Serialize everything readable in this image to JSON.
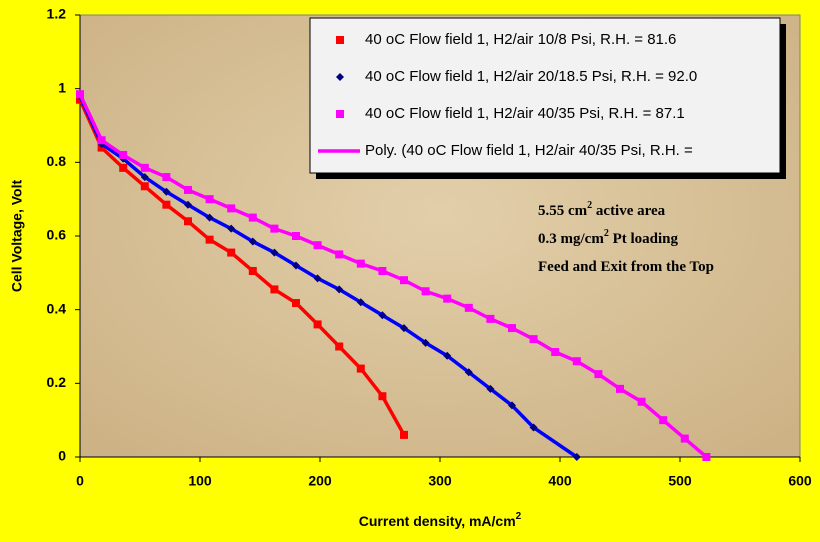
{
  "chart_data": {
    "type": "scatter",
    "x_label": [
      "Current density, mA/cm",
      "2"
    ],
    "y_label": "Cell Voltage, Volt",
    "xlim": [
      0,
      600
    ],
    "xticks": [
      0,
      100,
      200,
      300,
      400,
      500,
      600
    ],
    "ylim": [
      0,
      1.2
    ],
    "yticks": [
      0,
      0.2,
      0.4,
      0.6,
      0.8,
      1,
      1.2
    ],
    "grid": false,
    "legend": "top-right",
    "series": [
      {
        "name": "40 oC Flow field 1, H2/air 10/8 Psi, R.H. = 81.6",
        "color": "#ff0000",
        "marker": "square",
        "trendline_color": "#ff0000",
        "x": [
          0,
          18,
          36,
          54,
          72,
          90,
          108,
          126,
          144,
          162,
          180,
          198,
          216,
          234,
          252,
          270
        ],
        "values": [
          0.97,
          0.84,
          0.785,
          0.735,
          0.685,
          0.64,
          0.59,
          0.555,
          0.505,
          0.455,
          0.418,
          0.36,
          0.3,
          0.24,
          0.165,
          0.06
        ]
      },
      {
        "name": "40 oC Flow field 1, H2/air 20/18.5 Psi, R.H. = 92.0",
        "color": "#000080",
        "marker": "diamond",
        "trendline_color": "#0000ff",
        "x": [
          0,
          18,
          36,
          54,
          72,
          90,
          108,
          126,
          144,
          162,
          180,
          198,
          216,
          234,
          252,
          270,
          288,
          306,
          324,
          342,
          360,
          378,
          414
        ],
        "values": [
          0.98,
          0.85,
          0.81,
          0.76,
          0.72,
          0.685,
          0.65,
          0.62,
          0.585,
          0.555,
          0.52,
          0.485,
          0.455,
          0.42,
          0.385,
          0.35,
          0.31,
          0.275,
          0.23,
          0.185,
          0.14,
          0.08,
          0
        ]
      },
      {
        "name": "40 oC Flow field 1, H2/air 40/35 Psi, R.H. = 87.1",
        "color": "#ff00ff",
        "marker": "square",
        "trendline_color": "#ff00ff",
        "trendline_name": "Poly. (40 oC Flow field 1, H2/air 40/35 Psi, R.H. =",
        "x": [
          0,
          18,
          36,
          54,
          72,
          90,
          108,
          126,
          144,
          162,
          180,
          198,
          216,
          234,
          252,
          270,
          288,
          306,
          324,
          342,
          360,
          378,
          396,
          414,
          432,
          450,
          468,
          486,
          504,
          522
        ],
        "values": [
          0.985,
          0.86,
          0.82,
          0.785,
          0.76,
          0.725,
          0.7,
          0.675,
          0.65,
          0.62,
          0.6,
          0.575,
          0.55,
          0.525,
          0.505,
          0.48,
          0.45,
          0.43,
          0.405,
          0.375,
          0.35,
          0.32,
          0.285,
          0.26,
          0.225,
          0.185,
          0.15,
          0.1,
          0.05,
          0
        ]
      }
    ],
    "annotations": [
      [
        "5.55 cm",
        "2",
        " active area"
      ],
      [
        "0.3 mg/cm",
        "2",
        " Pt loading"
      ],
      [
        "Feed and Exit from the Top"
      ]
    ]
  }
}
